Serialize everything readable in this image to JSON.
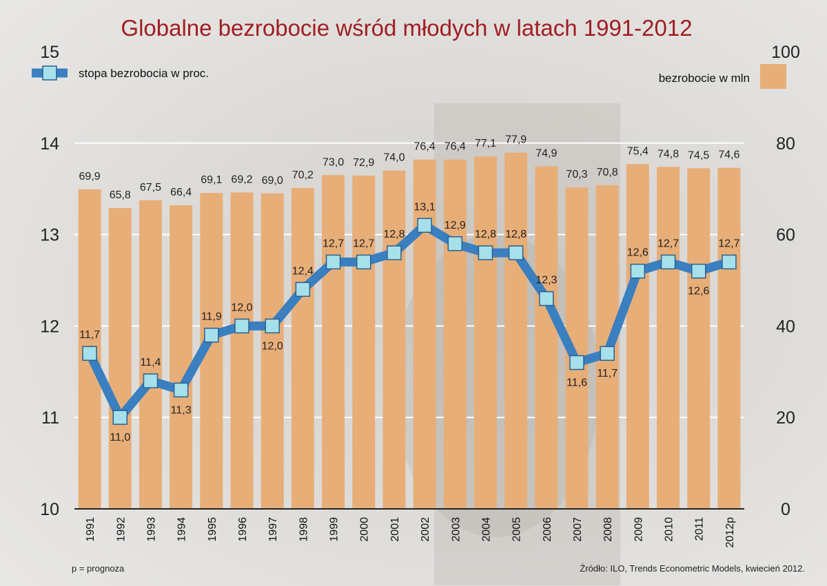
{
  "title": "Globalne bezrobocie wśród młodych w latach 1991-2012",
  "legend": {
    "rate": "stopa bezrobocia w proc.",
    "count": "bezrobocie w mln"
  },
  "footnote": "p = prognoza",
  "source": "Źródło: ILO, Trends Econometric Models, kwiecień 2012.",
  "colors": {
    "title": "#a01d22",
    "bar": "#e8ae78",
    "line": "#3a7fc0",
    "marker": "#a6e0ea"
  },
  "chart_data": {
    "type": "bar+line",
    "categories": [
      "1991",
      "1992",
      "1993",
      "1994",
      "1995",
      "1996",
      "1997",
      "1998",
      "1999",
      "2000",
      "2001",
      "2002",
      "2003",
      "2004",
      "2005",
      "2006",
      "2007",
      "2008",
      "2009",
      "2010",
      "2011",
      "2012p"
    ],
    "series": [
      {
        "name": "bezrobocie w mln",
        "type": "bar",
        "axis": "right",
        "values": [
          69.9,
          65.8,
          67.5,
          66.4,
          69.1,
          69.2,
          69.0,
          70.2,
          73.0,
          72.9,
          74.0,
          76.4,
          76.4,
          77.1,
          77.9,
          74.9,
          70.3,
          70.8,
          75.4,
          74.8,
          74.5,
          74.6
        ],
        "labels": [
          "69,9",
          "65,8",
          "67,5",
          "66,4",
          "69,1",
          "69,2",
          "69,0",
          "70,2",
          "73,0",
          "72,9",
          "74,0",
          "76,4",
          "76,4",
          "77,1",
          "77,9",
          "74,9",
          "70,3",
          "70,8",
          "75,4",
          "74,8",
          "74,5",
          "74,6"
        ]
      },
      {
        "name": "stopa bezrobocia w proc.",
        "type": "line",
        "axis": "left",
        "values": [
          11.7,
          11.0,
          11.4,
          11.3,
          11.9,
          12.0,
          12.0,
          12.4,
          12.7,
          12.7,
          12.8,
          13.1,
          12.9,
          12.8,
          12.8,
          12.3,
          11.6,
          11.7,
          12.6,
          12.7,
          12.6,
          12.7
        ],
        "labels": [
          "11,7",
          "11,0",
          "11,4",
          "11,3",
          "11,9",
          "12,0",
          "12,0",
          "12,4",
          "12,7",
          "12,7",
          "12,8",
          "13,1",
          "12,9",
          "12,8",
          "12,8",
          "12,3",
          "11,6",
          "11,7",
          "12,6",
          "12,7",
          "12,6",
          "12,7"
        ],
        "label_position": [
          "above",
          "below",
          "above",
          "below",
          "above",
          "above",
          "below",
          "above",
          "above",
          "above",
          "above",
          "above",
          "above",
          "above",
          "above",
          "above",
          "below",
          "below",
          "above",
          "above",
          "below",
          "above"
        ]
      }
    ],
    "y_left": {
      "ticks": [
        "10",
        "11",
        "12",
        "13",
        "14",
        "15"
      ],
      "range": [
        10,
        15
      ]
    },
    "y_right": {
      "ticks": [
        "0",
        "20",
        "40",
        "60",
        "80",
        "100"
      ],
      "range": [
        0,
        100
      ]
    },
    "grid": true,
    "legend_position": "top"
  }
}
